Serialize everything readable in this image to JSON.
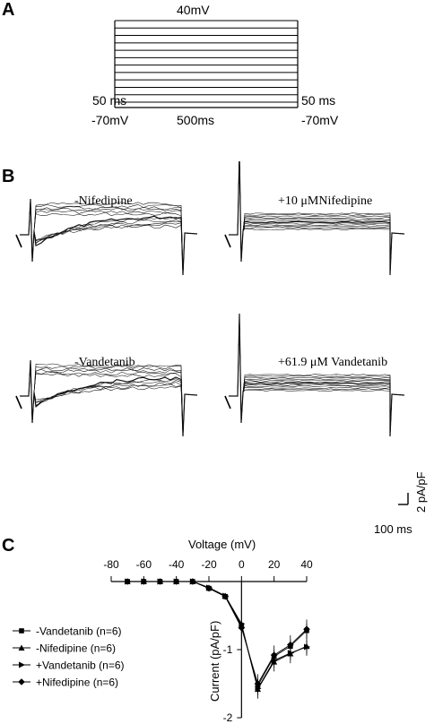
{
  "panels": {
    "a": "A",
    "b": "B",
    "c": "C"
  },
  "protocol": {
    "top_voltage": "40mV",
    "left_time": "50 ms",
    "right_time": "50 ms",
    "hold_left": "-70mV",
    "step_duration": "500ms",
    "hold_right": "-70mV",
    "step_count": 12
  },
  "traces": {
    "top_left": "-Nifedipine",
    "top_right": "+10 μMNifedipine",
    "bottom_left": "-Vandetanib",
    "bottom_right": "+61.9 μM Vandetanib",
    "scale_time": "100 ms",
    "scale_current": "2 pA/pF"
  },
  "chart_data": {
    "type": "line",
    "title": "",
    "xlabel": "Voltage (mV)",
    "ylabel": "Current (pA/pF)",
    "xlim": [
      -80,
      40
    ],
    "ylim": [
      -2,
      0
    ],
    "x_ticks": [
      -80,
      -60,
      -40,
      -20,
      0,
      20,
      40
    ],
    "y_ticks": [
      -1,
      -2
    ],
    "x": [
      -70,
      -60,
      -50,
      -40,
      -30,
      -20,
      -10,
      0,
      10,
      20,
      30,
      40
    ],
    "legend_position": "left",
    "series": [
      {
        "name": "-Vandetanib (n=6)",
        "marker": "square",
        "values": [
          0,
          0,
          0,
          0,
          0,
          -0.1,
          -0.22,
          -0.66,
          -1.53,
          -1.1,
          -0.95,
          -0.72
        ]
      },
      {
        "name": "-Nifedipine (n=6)",
        "marker": "triangle",
        "values": [
          0,
          0,
          0,
          0,
          0,
          -0.09,
          -0.21,
          -0.64,
          -1.58,
          -1.18,
          -1.06,
          -0.95
        ]
      },
      {
        "name": "+Vandetanib (n=6)",
        "marker": "arrow",
        "values": [
          0,
          0,
          0,
          0,
          0,
          -0.09,
          -0.21,
          -0.62,
          -1.57,
          -1.16,
          -1.05,
          -0.96
        ]
      },
      {
        "name": "+Nifedipine (n=6)",
        "marker": "diamond",
        "values": [
          0,
          0,
          0,
          0,
          0,
          -0.1,
          -0.22,
          -0.68,
          -1.5,
          -1.08,
          -0.93,
          -0.7
        ]
      }
    ]
  }
}
